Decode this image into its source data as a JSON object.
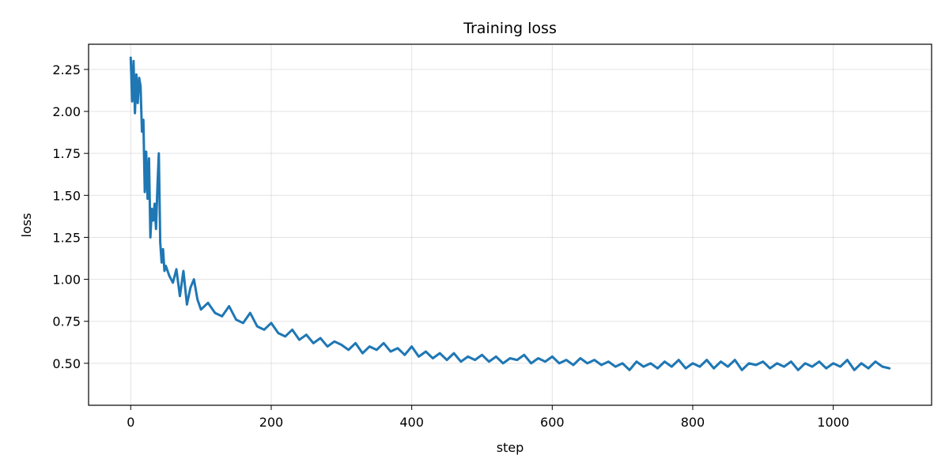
{
  "chart_data": {
    "type": "line",
    "title": "Training loss",
    "xlabel": "step",
    "ylabel": "loss",
    "xlim": [
      -60,
      1140
    ],
    "ylim": [
      0.25,
      2.4
    ],
    "grid": true,
    "x_ticks": [
      0,
      200,
      400,
      600,
      800,
      1000
    ],
    "y_ticks": [
      0.5,
      0.75,
      1.0,
      1.25,
      1.5,
      1.75,
      2.0,
      2.25
    ],
    "x_tick_labels": [
      "0",
      "200",
      "400",
      "600",
      "800",
      "1000"
    ],
    "y_tick_labels": [
      "0.50",
      "0.75",
      "1.00",
      "1.25",
      "1.50",
      "1.75",
      "2.00",
      "2.25"
    ],
    "line_color": "#1f77b4",
    "series": [
      {
        "x": [
          0,
          2,
          4,
          6,
          8,
          10,
          12,
          14,
          16,
          18,
          20,
          22,
          24,
          26,
          28,
          30,
          32,
          34,
          36,
          38,
          40,
          42,
          44,
          46,
          48,
          50,
          55,
          60,
          65,
          70,
          75,
          80,
          85,
          90,
          95,
          100,
          110,
          120,
          130,
          140,
          150,
          160,
          170,
          180,
          190,
          200,
          210,
          220,
          230,
          240,
          250,
          260,
          270,
          280,
          290,
          300,
          310,
          320,
          330,
          340,
          350,
          360,
          370,
          380,
          390,
          400,
          410,
          420,
          430,
          440,
          450,
          460,
          470,
          480,
          490,
          500,
          510,
          520,
          530,
          540,
          550,
          560,
          570,
          580,
          590,
          600,
          610,
          620,
          630,
          640,
          650,
          660,
          670,
          680,
          690,
          700,
          710,
          720,
          730,
          740,
          750,
          760,
          770,
          780,
          790,
          800,
          810,
          820,
          830,
          840,
          850,
          860,
          870,
          880,
          890,
          900,
          910,
          920,
          930,
          940,
          950,
          960,
          970,
          980,
          990,
          1000,
          1010,
          1020,
          1030,
          1040,
          1050,
          1060,
          1070,
          1080
        ],
        "y": [
          2.32,
          2.06,
          2.3,
          1.99,
          2.22,
          2.05,
          2.2,
          2.15,
          1.88,
          1.95,
          1.52,
          1.76,
          1.48,
          1.72,
          1.25,
          1.42,
          1.35,
          1.45,
          1.3,
          1.55,
          1.75,
          1.22,
          1.1,
          1.18,
          1.05,
          1.08,
          1.02,
          0.98,
          1.06,
          0.9,
          1.05,
          0.85,
          0.95,
          1.0,
          0.88,
          0.82,
          0.86,
          0.8,
          0.78,
          0.84,
          0.76,
          0.74,
          0.8,
          0.72,
          0.7,
          0.74,
          0.68,
          0.66,
          0.7,
          0.64,
          0.67,
          0.62,
          0.65,
          0.6,
          0.63,
          0.61,
          0.58,
          0.62,
          0.56,
          0.6,
          0.58,
          0.62,
          0.57,
          0.59,
          0.55,
          0.6,
          0.54,
          0.57,
          0.53,
          0.56,
          0.52,
          0.56,
          0.51,
          0.54,
          0.52,
          0.55,
          0.51,
          0.54,
          0.5,
          0.53,
          0.52,
          0.55,
          0.5,
          0.53,
          0.51,
          0.54,
          0.5,
          0.52,
          0.49,
          0.53,
          0.5,
          0.52,
          0.49,
          0.51,
          0.48,
          0.5,
          0.46,
          0.51,
          0.48,
          0.5,
          0.47,
          0.51,
          0.48,
          0.52,
          0.47,
          0.5,
          0.48,
          0.52,
          0.47,
          0.51,
          0.48,
          0.52,
          0.46,
          0.5,
          0.49,
          0.51,
          0.47,
          0.5,
          0.48,
          0.51,
          0.46,
          0.5,
          0.48,
          0.51,
          0.47,
          0.5,
          0.48,
          0.52,
          0.46,
          0.5,
          0.47,
          0.51,
          0.48,
          0.47
        ]
      }
    ]
  }
}
